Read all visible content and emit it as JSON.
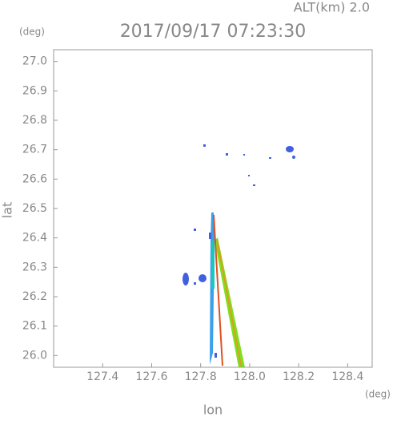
{
  "chart_data": {
    "type": "map",
    "title": "2017/09/17 07:23:30",
    "subtitle": "ALT(km) 2.0",
    "x_label": "lon",
    "y_label": "lat",
    "x_unit": "(deg)",
    "y_unit": "(deg)",
    "xlim": [
      127.2,
      128.5
    ],
    "ylim": [
      25.96,
      27.04
    ],
    "xticks": [
      127.4,
      127.6,
      127.8,
      {
        "value": 128.0,
        "label": "128.0"
      },
      128.2,
      128.4
    ],
    "yticks": [
      {
        "value": 26.0,
        "label": "26.0"
      },
      26.1,
      26.2,
      26.3,
      26.4,
      26.5,
      26.6,
      26.7,
      26.8,
      26.9,
      {
        "value": 27.0,
        "label": "27.0"
      }
    ]
  }
}
